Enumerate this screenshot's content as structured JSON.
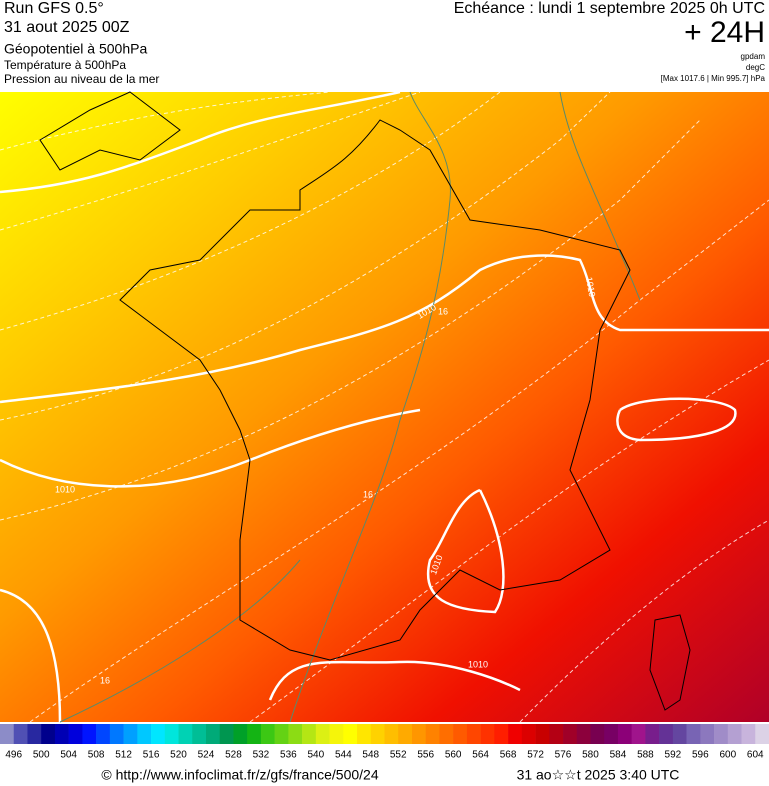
{
  "header": {
    "run": "Run GFS 0.5°",
    "date": "31 aout 2025 00Z",
    "field1": "Géopotentiel à 500hPa",
    "field2": "Température à 500hPa",
    "field3": "Pression au niveau de la mer",
    "echeance": "Echéance : lundi 1 septembre 2025 0h UTC",
    "lead": "+ 24H",
    "unit1": "gpdam",
    "unit2": "degC",
    "range": "[Max 1017.6 | Min 995.7] hPa"
  },
  "map": {
    "contour_labels": [
      "1010",
      "1010",
      "1010",
      "1010",
      "1010",
      "16",
      "16",
      "16"
    ]
  },
  "legend": {
    "levels": [
      496,
      500,
      504,
      508,
      512,
      516,
      520,
      524,
      528,
      532,
      536,
      540,
      544,
      548,
      552,
      556,
      560,
      564,
      568,
      572,
      576,
      580,
      584,
      588,
      592,
      596,
      600,
      604
    ],
    "colors": [
      "#8c8cc8",
      "#5050b4",
      "#2828a0",
      "#00008c",
      "#0000b4",
      "#0000dc",
      "#0014ff",
      "#0046ff",
      "#0078ff",
      "#00a0ff",
      "#00c8ff",
      "#00e6ff",
      "#00e6dc",
      "#00d2b4",
      "#00be96",
      "#00aa78",
      "#009650",
      "#00a028",
      "#14b414",
      "#3cc814",
      "#64d214",
      "#8cdc14",
      "#b4e614",
      "#dcf014",
      "#f5f50a",
      "#ffff00",
      "#ffe600",
      "#ffd200",
      "#ffbe00",
      "#ffaa00",
      "#ff9600",
      "#ff8200",
      "#ff6e00",
      "#ff5a00",
      "#ff4600",
      "#ff3200",
      "#ff1e00",
      "#f00000",
      "#dc0000",
      "#c80000",
      "#b40014",
      "#a00028",
      "#8c003c",
      "#780050",
      "#780064",
      "#8c0078",
      "#a0148c",
      "#781e8c",
      "#643296",
      "#6446a0",
      "#7864b4",
      "#8c78be",
      "#a08cc8",
      "#b4a0d2",
      "#c8b4dc",
      "#dcd2e6"
    ]
  },
  "footer": {
    "url": "© http://www.infoclimat.fr/z/gfs/france/500/24",
    "generated": "31 ao☆☆t 2025  3:40 UTC"
  }
}
